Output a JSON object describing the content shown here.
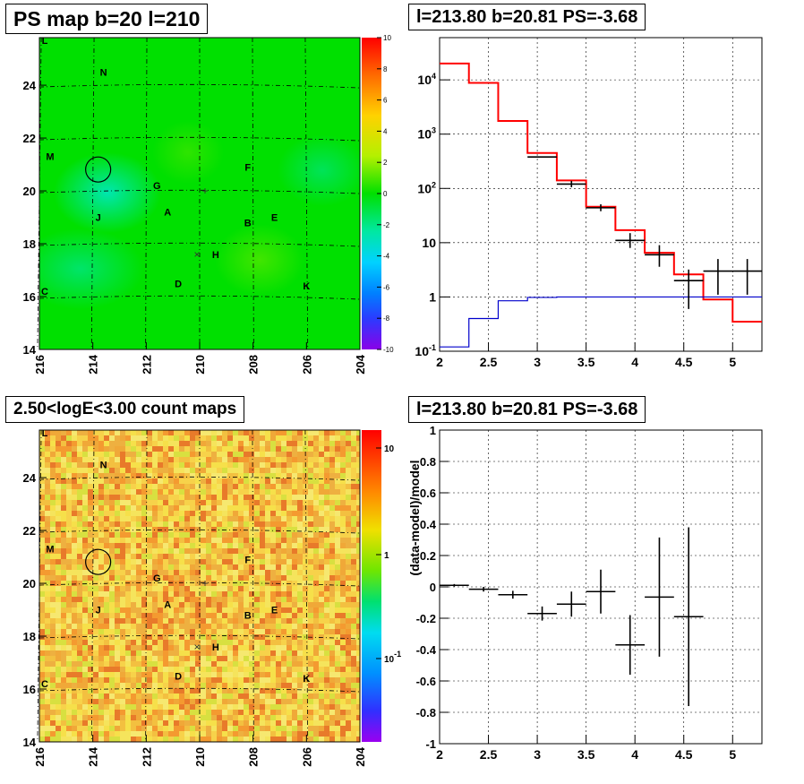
{
  "panels": {
    "ps_map_title": "PS map b=20 l=210",
    "spectrum_title": "l=213.80 b=20.81 PS=-3.68",
    "count_map_title": "2.50<logE<3.00 count maps",
    "residual_title": "l=213.80 b=20.81 PS=-3.68"
  },
  "chart_data": [
    {
      "type": "heatmap",
      "name": "ps-map",
      "title": "PS map b=20 l=210",
      "x_ticks": [
        "216",
        "214",
        "212",
        "210",
        "208",
        "206",
        "204"
      ],
      "y_ticks": [
        "14",
        "16",
        "18",
        "20",
        "22",
        "24"
      ],
      "xlim": [
        216,
        204
      ],
      "ylim": [
        14,
        25.8
      ],
      "colorbar_ticks": [
        "10",
        "8",
        "6",
        "4",
        "2",
        "0",
        "-2",
        "-4",
        "-6",
        "-8",
        "-10"
      ],
      "colorbar_range": [
        -10,
        10
      ],
      "sources": [
        {
          "label": "L",
          "l": 215.8,
          "b": 25.7
        },
        {
          "label": "N",
          "l": 213.6,
          "b": 24.5
        },
        {
          "label": "M",
          "l": 215.6,
          "b": 21.3
        },
        {
          "label": "F",
          "l": 208.2,
          "b": 20.9
        },
        {
          "label": "G",
          "l": 211.6,
          "b": 20.2
        },
        {
          "label": "J",
          "l": 213.8,
          "b": 19.0
        },
        {
          "label": "A",
          "l": 211.2,
          "b": 19.2
        },
        {
          "label": "B",
          "l": 208.2,
          "b": 18.8
        },
        {
          "label": "E",
          "l": 207.2,
          "b": 19.0
        },
        {
          "label": "H",
          "l": 209.4,
          "b": 17.6
        },
        {
          "label": "D",
          "l": 210.8,
          "b": 16.5
        },
        {
          "label": "K",
          "l": 206.0,
          "b": 16.4
        },
        {
          "label": "C",
          "l": 215.8,
          "b": 16.2
        }
      ],
      "circle": {
        "l": 213.8,
        "b": 20.81
      },
      "markers": [
        {
          "l": 209.8,
          "b": 20.0,
          "symbol": "+"
        },
        {
          "l": 210.1,
          "b": 17.6,
          "symbol": "×"
        }
      ]
    },
    {
      "type": "line",
      "name": "spectrum",
      "title": "l=213.80 b=20.81 PS=-3.68",
      "xlim": [
        2,
        5.3
      ],
      "ylim": [
        0.1,
        60000
      ],
      "y_scale": "log",
      "x_ticks": [
        "2",
        "2.5",
        "3",
        "3.5",
        "4",
        "4.5",
        "5"
      ],
      "y_ticks": [
        "10^-1",
        "1",
        "10",
        "10^2",
        "10^3",
        "10^4"
      ],
      "series": [
        {
          "color": "#ff0000",
          "edges": [
            2.0,
            2.3,
            2.6,
            2.9,
            3.2,
            3.5,
            3.8,
            4.1,
            4.4,
            4.7,
            5.0,
            5.3
          ],
          "values": [
            20000,
            8800,
            1750,
            450,
            140,
            46,
            17,
            6.5,
            2.6,
            0.9,
            0.35
          ]
        },
        {
          "color": "#0000cc",
          "edges": [
            2.0,
            2.3,
            2.6,
            2.9,
            3.2,
            3.5,
            3.8,
            4.1,
            4.4,
            4.7,
            5.0,
            5.3
          ],
          "values": [
            0.12,
            0.4,
            0.85,
            0.98,
            1.0,
            1.0,
            1.0,
            1.0,
            1.0,
            1.0,
            1.0
          ]
        }
      ],
      "points": [
        {
          "x": 3.05,
          "y": 380,
          "xerr": 0.15,
          "ylo": 380,
          "yhi": 380
        },
        {
          "x": 3.35,
          "y": 120,
          "xerr": 0.15,
          "ylo": 105,
          "yhi": 138
        },
        {
          "x": 3.65,
          "y": 44,
          "xerr": 0.15,
          "ylo": 38,
          "yhi": 51
        },
        {
          "x": 3.95,
          "y": 11,
          "xerr": 0.15,
          "ylo": 8,
          "yhi": 15
        },
        {
          "x": 4.25,
          "y": 6,
          "xerr": 0.15,
          "ylo": 3.6,
          "yhi": 9
        },
        {
          "x": 4.55,
          "y": 2,
          "xerr": 0.15,
          "ylo": 0.6,
          "yhi": 3.2
        },
        {
          "x": 4.85,
          "y": 3,
          "xerr": 0.15,
          "ylo": 1.1,
          "yhi": 5
        },
        {
          "x": 5.15,
          "y": 3,
          "xerr": 0.15,
          "ylo": 1.1,
          "yhi": 5
        }
      ]
    },
    {
      "type": "heatmap",
      "name": "count-map",
      "title": "2.50<logE<3.00 count maps",
      "x_ticks": [
        "216",
        "214",
        "212",
        "210",
        "208",
        "206",
        "204"
      ],
      "y_ticks": [
        "14",
        "16",
        "18",
        "20",
        "22",
        "24"
      ],
      "colorbar_ticks": [
        "10",
        "1",
        "10^-1"
      ],
      "colorbar_scale": "log"
    },
    {
      "type": "scatter",
      "name": "residual",
      "title": "l=213.80 b=20.81 PS=-3.68",
      "ylabel": "(data-model)/model",
      "xlim": [
        2,
        5.3
      ],
      "ylim": [
        -1,
        1
      ],
      "x_ticks": [
        "2",
        "2.5",
        "3",
        "3.5",
        "4",
        "4.5",
        "5"
      ],
      "y_ticks": [
        "-1",
        "-0.8",
        "-0.6",
        "-0.4",
        "-0.2",
        "0",
        "0.2",
        "0.4",
        "0.6",
        "0.8",
        "1"
      ],
      "points": [
        {
          "x": 2.15,
          "y": 0.01,
          "xerr": 0.15,
          "yerr": 0.008
        },
        {
          "x": 2.45,
          "y": -0.015,
          "xerr": 0.15,
          "yerr": 0.015
        },
        {
          "x": 2.75,
          "y": -0.05,
          "xerr": 0.15,
          "yerr": 0.025
        },
        {
          "x": 3.05,
          "y": -0.17,
          "xerr": 0.15,
          "yerr": 0.045
        },
        {
          "x": 3.35,
          "y": -0.11,
          "xerr": 0.15,
          "yerr": 0.08
        },
        {
          "x": 3.65,
          "y": -0.03,
          "xerr": 0.15,
          "yerr": 0.14
        },
        {
          "x": 3.95,
          "y": -0.37,
          "xerr": 0.15,
          "yerr": 0.19
        },
        {
          "x": 4.25,
          "y": -0.065,
          "xerr": 0.15,
          "yerr": 0.38
        },
        {
          "x": 4.55,
          "y": -0.19,
          "xerr": 0.15,
          "yerr": 0.57
        }
      ]
    }
  ]
}
